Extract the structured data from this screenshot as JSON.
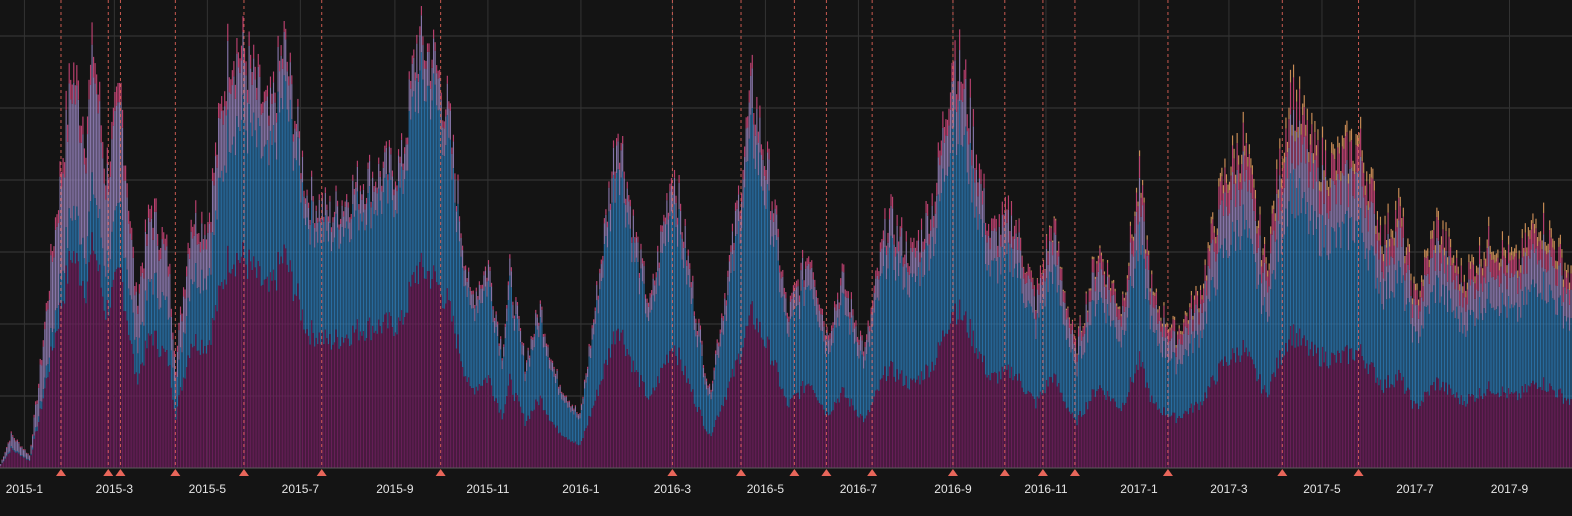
{
  "chart_data": {
    "type": "bar",
    "stacked": true,
    "title": "",
    "xlabel": "",
    "ylabel": "",
    "grid": true,
    "legend": "none",
    "x_range": [
      "2014-12-16",
      "2017-10-12"
    ],
    "ylim": [
      0,
      100
    ],
    "x_tick_labels": [
      "2015-1",
      "2015-3",
      "2015-5",
      "2015-7",
      "2015-9",
      "2015-11",
      "2016-1",
      "2016-3",
      "2016-5",
      "2016-7",
      "2016-9",
      "2016-11",
      "2017-1",
      "2017-3",
      "2017-5",
      "2017-7",
      "2017-9"
    ],
    "x_tick_dates": [
      "2015-01-01",
      "2015-03-01",
      "2015-05-01",
      "2015-07-01",
      "2015-09-01",
      "2015-11-01",
      "2016-01-01",
      "2016-03-01",
      "2016-05-01",
      "2016-07-01",
      "2016-09-01",
      "2016-11-01",
      "2017-01-01",
      "2017-03-01",
      "2017-05-01",
      "2017-07-01",
      "2017-09-01"
    ],
    "event_dates": [
      "2015-01-25",
      "2015-02-25",
      "2015-03-05",
      "2015-04-10",
      "2015-05-25",
      "2015-07-15",
      "2015-10-01",
      "2016-03-01",
      "2016-04-15",
      "2016-05-20",
      "2016-06-10",
      "2016-07-10",
      "2016-09-01",
      "2016-10-05",
      "2016-10-30",
      "2016-11-20",
      "2017-01-20",
      "2017-04-05",
      "2017-05-25"
    ],
    "series": [
      {
        "color": "#6b1f5c"
      },
      {
        "color": "#2b7bb9"
      },
      {
        "color": "#9a86c2"
      },
      {
        "color": "#d6487e"
      },
      {
        "color": "#e8a060"
      }
    ],
    "envelope_keypoints": [
      [
        "2014-12-16",
        1
      ],
      [
        "2014-12-23",
        8
      ],
      [
        "2015-01-04",
        3
      ],
      [
        "2015-01-10",
        20
      ],
      [
        "2015-01-20",
        55
      ],
      [
        "2015-02-01",
        95
      ],
      [
        "2015-02-10",
        80
      ],
      [
        "2015-02-15",
        100
      ],
      [
        "2015-02-23",
        70
      ],
      [
        "2015-03-05",
        88
      ],
      [
        "2015-03-15",
        40
      ],
      [
        "2015-03-25",
        62
      ],
      [
        "2015-04-05",
        50
      ],
      [
        "2015-04-10",
        25
      ],
      [
        "2015-04-20",
        60
      ],
      [
        "2015-05-01",
        58
      ],
      [
        "2015-05-15",
        100
      ],
      [
        "2015-05-25",
        98
      ],
      [
        "2015-06-10",
        82
      ],
      [
        "2015-06-20",
        100
      ],
      [
        "2015-07-05",
        65
      ],
      [
        "2015-07-20",
        60
      ],
      [
        "2015-08-10",
        68
      ],
      [
        "2015-09-05",
        72
      ],
      [
        "2015-09-15",
        100
      ],
      [
        "2015-09-25",
        98
      ],
      [
        "2015-10-05",
        85
      ],
      [
        "2015-10-20",
        40
      ],
      [
        "2015-11-01",
        48
      ],
      [
        "2015-11-10",
        28
      ],
      [
        "2015-11-15",
        46
      ],
      [
        "2015-11-25",
        25
      ],
      [
        "2015-12-05",
        38
      ],
      [
        "2015-12-15",
        22
      ],
      [
        "2015-12-31",
        12
      ],
      [
        "2016-01-10",
        38
      ],
      [
        "2016-01-25",
        82
      ],
      [
        "2016-02-05",
        55
      ],
      [
        "2016-02-15",
        38
      ],
      [
        "2016-03-01",
        72
      ],
      [
        "2016-03-15",
        40
      ],
      [
        "2016-03-25",
        18
      ],
      [
        "2016-04-10",
        55
      ],
      [
        "2016-04-22",
        90
      ],
      [
        "2016-05-05",
        65
      ],
      [
        "2016-05-15",
        36
      ],
      [
        "2016-05-30",
        52
      ],
      [
        "2016-06-10",
        32
      ],
      [
        "2016-06-20",
        45
      ],
      [
        "2016-07-05",
        28
      ],
      [
        "2016-07-20",
        60
      ],
      [
        "2016-08-05",
        50
      ],
      [
        "2016-08-20",
        65
      ],
      [
        "2016-09-01",
        100
      ],
      [
        "2016-09-10",
        88
      ],
      [
        "2016-09-25",
        55
      ],
      [
        "2016-10-10",
        60
      ],
      [
        "2016-10-25",
        40
      ],
      [
        "2016-11-05",
        58
      ],
      [
        "2016-11-20",
        28
      ],
      [
        "2016-12-05",
        52
      ],
      [
        "2016-12-20",
        38
      ],
      [
        "2017-01-01",
        68
      ],
      [
        "2017-01-10",
        40
      ],
      [
        "2017-01-25",
        32
      ],
      [
        "2017-02-10",
        42
      ],
      [
        "2017-02-25",
        68
      ],
      [
        "2017-03-10",
        78
      ],
      [
        "2017-03-25",
        48
      ],
      [
        "2017-04-10",
        90
      ],
      [
        "2017-04-25",
        75
      ],
      [
        "2017-05-10",
        72
      ],
      [
        "2017-05-25",
        78
      ],
      [
        "2017-06-10",
        55
      ],
      [
        "2017-06-20",
        62
      ],
      [
        "2017-07-01",
        40
      ],
      [
        "2017-07-15",
        58
      ],
      [
        "2017-08-01",
        45
      ],
      [
        "2017-08-20",
        55
      ],
      [
        "2017-09-05",
        48
      ],
      [
        "2017-09-20",
        60
      ],
      [
        "2017-10-12",
        45
      ]
    ],
    "series_shares": [
      [
        "2015-01-01",
        [
          0.55,
          0.05,
          0.35,
          0.05,
          0.0
        ]
      ],
      [
        "2015-04-15",
        [
          0.5,
          0.25,
          0.2,
          0.05,
          0.0
        ]
      ],
      [
        "2015-07-01",
        [
          0.5,
          0.4,
          0.08,
          0.02,
          0.0
        ]
      ],
      [
        "2016-01-01",
        [
          0.42,
          0.48,
          0.08,
          0.02,
          0.0
        ]
      ],
      [
        "2016-10-01",
        [
          0.38,
          0.45,
          0.12,
          0.05,
          0.0
        ]
      ],
      [
        "2017-03-01",
        [
          0.36,
          0.38,
          0.15,
          0.08,
          0.03
        ]
      ],
      [
        "2017-10-12",
        [
          0.34,
          0.4,
          0.14,
          0.08,
          0.04
        ]
      ]
    ]
  }
}
